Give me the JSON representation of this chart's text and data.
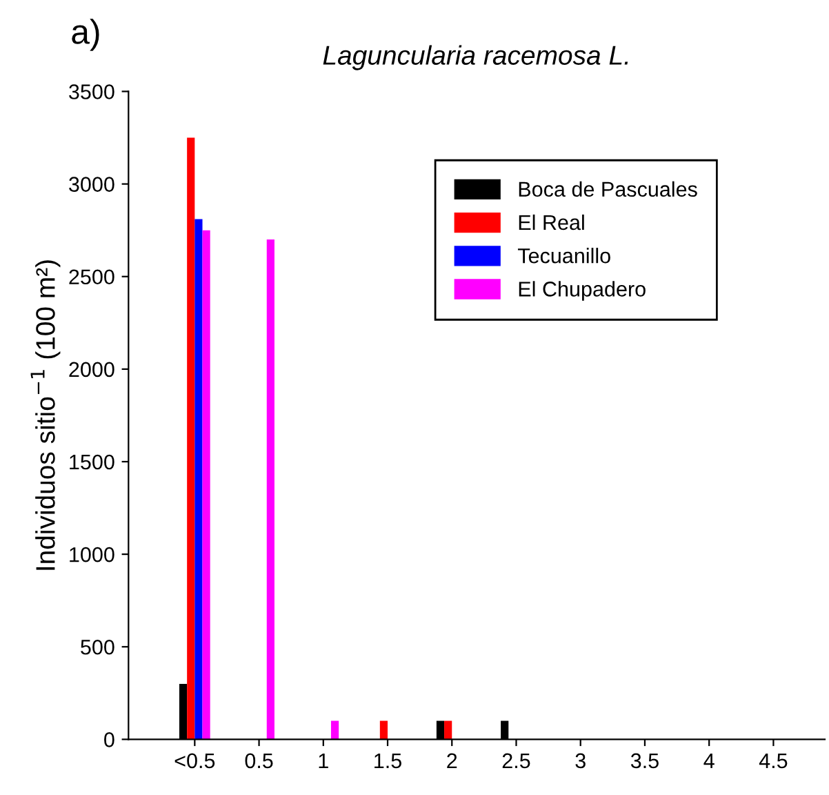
{
  "chart_data": {
    "type": "bar",
    "title": "Laguncularia racemosa L.",
    "ylabel": "Individuos sitio$^{−1}$ (100 m²)",
    "annotations": [
      "a)"
    ],
    "categories": [
      "<0.5",
      "0.5",
      "1",
      "1.5",
      "2",
      "2.5",
      "3",
      "3.5",
      "4",
      "4.5"
    ],
    "series": [
      {
        "name": "Boca de Pascuales",
        "color": "#000000",
        "values": [
          300,
          0,
          0,
          0,
          100,
          100,
          0,
          0,
          0,
          0
        ]
      },
      {
        "name": "El Real",
        "color": "#ff0000",
        "values": [
          3250,
          0,
          0,
          100,
          100,
          0,
          0,
          0,
          0,
          0
        ]
      },
      {
        "name": "Tecuanillo",
        "color": "#0000ff",
        "values": [
          2810,
          0,
          0,
          0,
          0,
          0,
          0,
          0,
          0,
          0
        ]
      },
      {
        "name": "El Chupadero",
        "color": "#ff00ff",
        "values": [
          2750,
          2700,
          100,
          0,
          0,
          0,
          0,
          0,
          0,
          0
        ]
      }
    ],
    "ylim": [
      0,
      3500
    ],
    "yticks": [
      0,
      500,
      1000,
      1500,
      2000,
      2500,
      3000,
      3500
    ],
    "grid": false,
    "legend": "top right"
  }
}
